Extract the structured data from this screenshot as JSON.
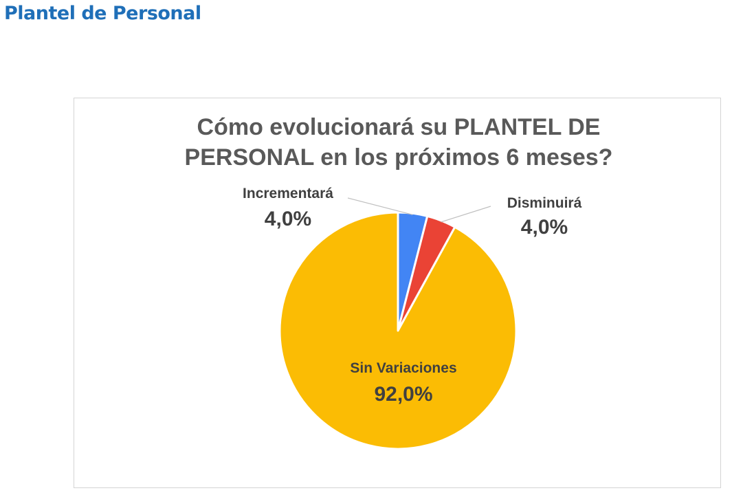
{
  "page": {
    "heading": "Plantel de Personal"
  },
  "chart_data": {
    "type": "pie",
    "title": "Cómo evolucionará su PLANTEL DE PERSONAL en los próximos 6 meses?",
    "title_lines": [
      "Cómo evolucionará su PLANTEL DE",
      "PERSONAL  en los próximos 6 meses?"
    ],
    "slices": [
      {
        "label": "Incrementará",
        "value": 4.0,
        "display": "4,0%",
        "color": "#4285f4"
      },
      {
        "label": "Disminuirá",
        "value": 4.0,
        "display": "4,0%",
        "color": "#ea4335"
      },
      {
        "label": "Sin Variaciones",
        "value": 92.0,
        "display": "92,0%",
        "color": "#fbbc04"
      }
    ],
    "start_angle_deg": 0,
    "direction": "clockwise",
    "legend": "none",
    "data_labels": "category and percentage"
  }
}
